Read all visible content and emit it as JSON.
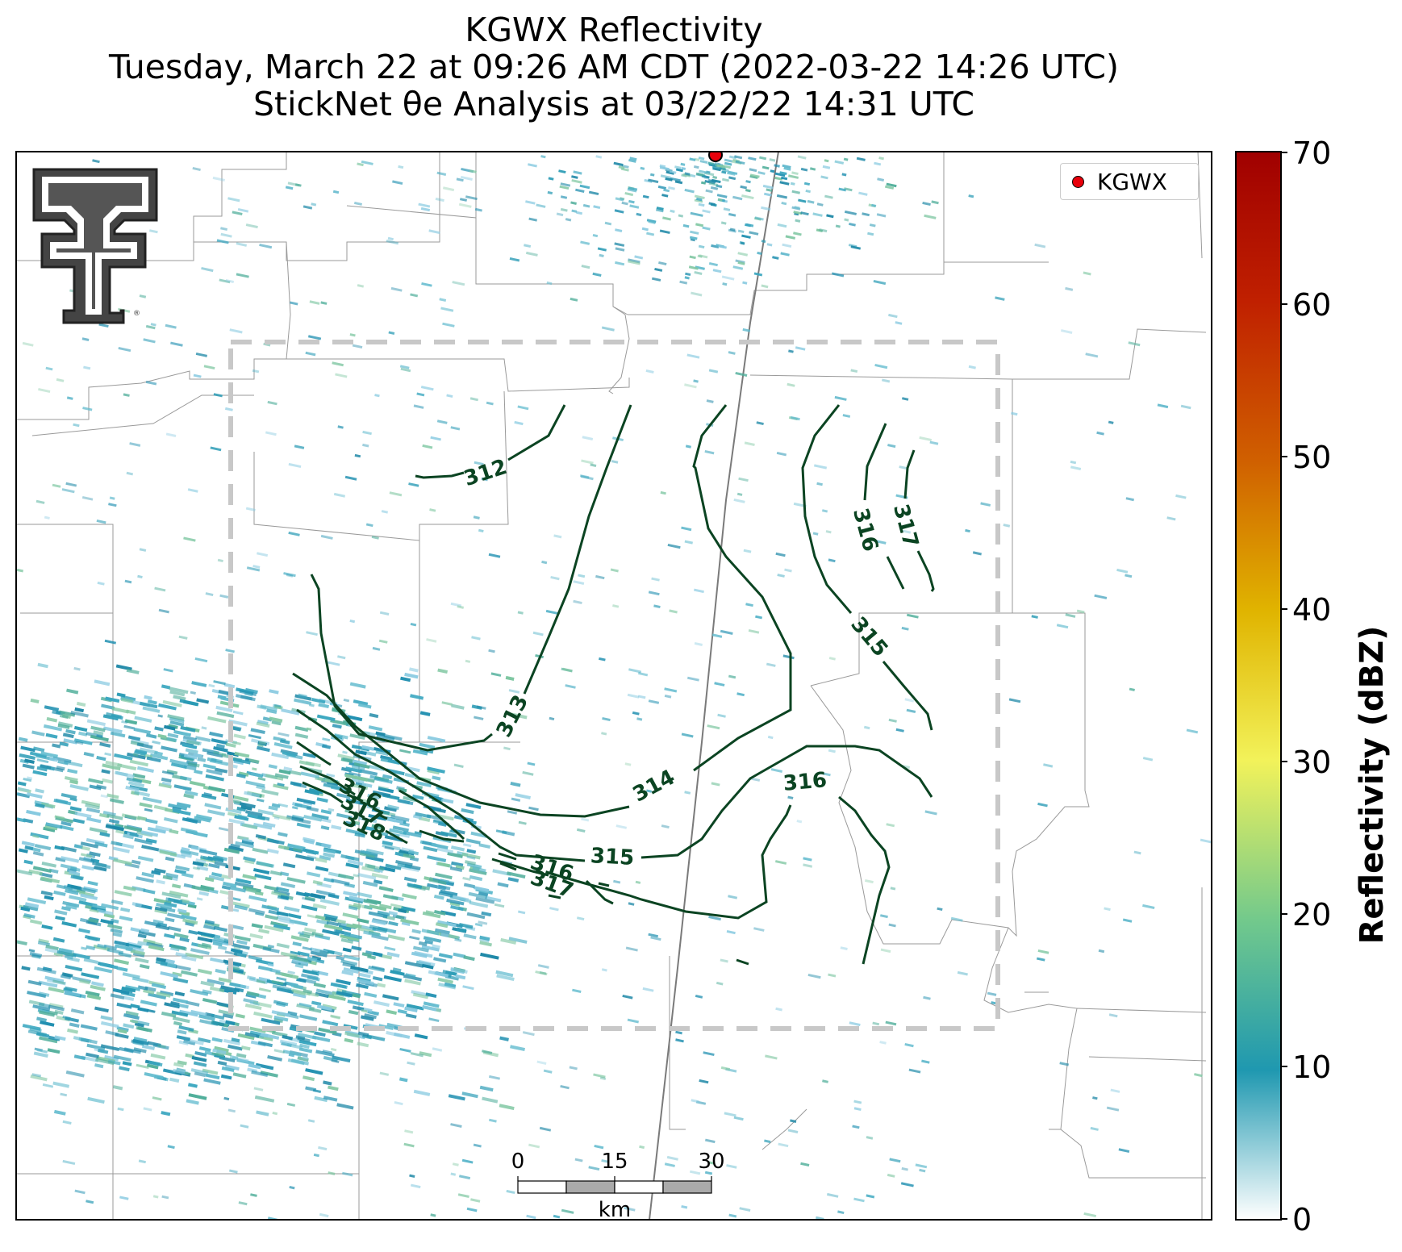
{
  "title": {
    "line1": "KGWX Reflectivity",
    "line2": "Tuesday, March 22 at 09:26 AM CDT (2022-03-22 14:26 UTC)",
    "line3": "StickNet θe Analysis at 03/22/22 14:31 UTC"
  },
  "legend": {
    "radar_label": "KGWX",
    "marker_color": "#e8000b"
  },
  "colorbar": {
    "title": "Reflectivity (dBZ)",
    "min": 0,
    "max": 70,
    "ticks": [
      "0",
      "10",
      "20",
      "30",
      "40",
      "50",
      "60",
      "70"
    ],
    "colors": [
      "#ffffff",
      "#1f98b0",
      "#72c98c",
      "#f2f25a",
      "#e0b400",
      "#d06000",
      "#c02000",
      "#a00000"
    ]
  },
  "contours": {
    "color": "#0b4422",
    "labels": [
      "312",
      "313",
      "314",
      "315",
      "315",
      "316",
      "316",
      "316",
      "317",
      "316",
      "317",
      "317",
      "318"
    ]
  },
  "scale_bar": {
    "labels": [
      "0",
      "15",
      "30"
    ],
    "unit": "km"
  },
  "analysis_domain_color": "#c8c8c8",
  "logo": "texas-tech-double-t"
}
